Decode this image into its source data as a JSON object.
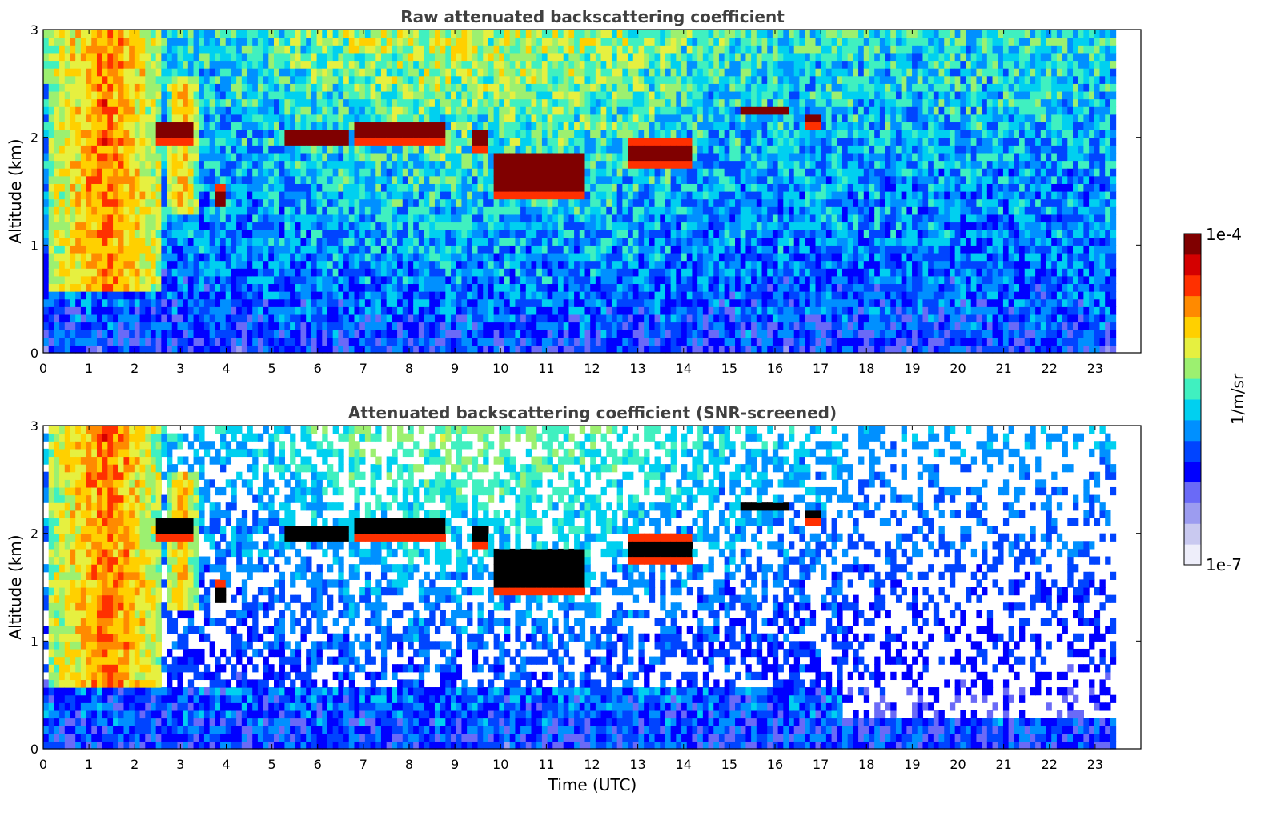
{
  "chart_data": [
    {
      "type": "heatmap",
      "title": "Raw attenuated backscattering coefficient",
      "xlabel": "",
      "ylabel": "Altitude (km)",
      "xlim": [
        0,
        24
      ],
      "ylim": [
        0,
        3
      ],
      "x_data_end": 23.45,
      "xticks": [
        "0",
        "1",
        "2",
        "3",
        "4",
        "5",
        "6",
        "7",
        "8",
        "9",
        "10",
        "11",
        "12",
        "13",
        "14",
        "15",
        "16",
        "17",
        "18",
        "19",
        "20",
        "21",
        "22",
        "23"
      ],
      "yticks": [
        "0",
        "1",
        "2",
        "3"
      ],
      "screened": false,
      "features": [
        {
          "kind": "plume",
          "t_start": 0.15,
          "t_end": 2.6,
          "alt_bottom": 0.6,
          "alt_top": 3.0,
          "level": 0.6
        },
        {
          "kind": "plume",
          "t_start": 2.7,
          "t_end": 3.4,
          "alt_bottom": 1.3,
          "alt_top": 2.6,
          "level": 0.55
        },
        {
          "kind": "cloud",
          "t_start": 2.5,
          "t_end": 3.3,
          "alt_center": 2.05,
          "thickness": 0.15
        },
        {
          "kind": "cloud",
          "t_start": 3.75,
          "t_end": 4.0,
          "alt_center": 1.45,
          "thickness": 0.15
        },
        {
          "kind": "cloud",
          "t_start": 5.3,
          "t_end": 6.65,
          "alt_center": 2.0,
          "thickness": 0.12
        },
        {
          "kind": "cloud",
          "t_start": 6.8,
          "t_end": 8.8,
          "alt_center": 2.05,
          "thickness": 0.15
        },
        {
          "kind": "cloud",
          "t_start": 9.4,
          "t_end": 9.7,
          "alt_center": 1.98,
          "thickness": 0.15
        },
        {
          "kind": "cloud",
          "t_start": 9.8,
          "t_end": 11.9,
          "alt_center": 1.65,
          "thickness": 0.35
        },
        {
          "kind": "cloud",
          "t_start": 12.8,
          "t_end": 14.2,
          "alt_center": 1.85,
          "thickness": 0.2
        },
        {
          "kind": "cloud",
          "t_start": 15.3,
          "t_end": 16.3,
          "alt_center": 2.25,
          "thickness": 0.08
        },
        {
          "kind": "cloud",
          "t_start": 16.7,
          "t_end": 16.95,
          "alt_center": 2.15,
          "thickness": 0.08
        }
      ]
    },
    {
      "type": "heatmap",
      "title": "Attenuated backscattering coefficient (SNR-screened)",
      "xlabel": "Time (UTC)",
      "ylabel": "Altitude (km)",
      "xlim": [
        0,
        24
      ],
      "ylim": [
        0,
        3
      ],
      "x_data_end": 23.45,
      "xticks": [
        "0",
        "1",
        "2",
        "3",
        "4",
        "5",
        "6",
        "7",
        "8",
        "9",
        "10",
        "11",
        "12",
        "13",
        "14",
        "15",
        "16",
        "17",
        "18",
        "19",
        "20",
        "21",
        "22",
        "23"
      ],
      "yticks": [
        "0",
        "1",
        "2",
        "3"
      ],
      "screened": true,
      "features": [
        {
          "kind": "plume",
          "t_start": 0.15,
          "t_end": 2.6,
          "alt_bottom": 0.6,
          "alt_top": 3.0,
          "level": 0.6
        },
        {
          "kind": "plume",
          "t_start": 2.7,
          "t_end": 3.4,
          "alt_bottom": 1.3,
          "alt_top": 2.6,
          "level": 0.55
        },
        {
          "kind": "cloud",
          "t_start": 2.5,
          "t_end": 3.3,
          "alt_center": 2.05,
          "thickness": 0.15
        },
        {
          "kind": "cloud",
          "t_start": 3.75,
          "t_end": 4.0,
          "alt_center": 1.45,
          "thickness": 0.15
        },
        {
          "kind": "cloud",
          "t_start": 5.3,
          "t_end": 6.65,
          "alt_center": 2.0,
          "thickness": 0.12
        },
        {
          "kind": "cloud",
          "t_start": 6.8,
          "t_end": 8.8,
          "alt_center": 2.05,
          "thickness": 0.15
        },
        {
          "kind": "cloud",
          "t_start": 9.4,
          "t_end": 9.7,
          "alt_center": 1.98,
          "thickness": 0.15
        },
        {
          "kind": "cloud",
          "t_start": 9.8,
          "t_end": 11.9,
          "alt_center": 1.65,
          "thickness": 0.35
        },
        {
          "kind": "cloud",
          "t_start": 12.8,
          "t_end": 14.2,
          "alt_center": 1.85,
          "thickness": 0.2
        },
        {
          "kind": "cloud",
          "t_start": 15.3,
          "t_end": 16.3,
          "alt_center": 2.25,
          "thickness": 0.08
        },
        {
          "kind": "cloud",
          "t_start": 16.7,
          "t_end": 16.95,
          "alt_center": 2.15,
          "thickness": 0.08
        }
      ]
    }
  ],
  "colorbar": {
    "label": "1/m/sr",
    "max_label": "1e-4",
    "min_label": "1e-7",
    "colors": [
      "#eeeefa",
      "#c9c9f0",
      "#9c9cf0",
      "#6a6af7",
      "#0000ff",
      "#0044ff",
      "#0090ff",
      "#00d0f0",
      "#40f0c0",
      "#9cf070",
      "#e6f040",
      "#ffd000",
      "#ff8a00",
      "#ff3000",
      "#d40000",
      "#800000"
    ]
  }
}
